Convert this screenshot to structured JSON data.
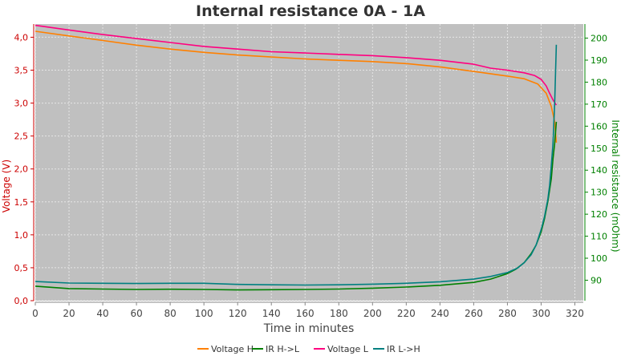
{
  "chart_data": {
    "type": "line",
    "title": "Internal resistance  0A - 1A",
    "xlabel": "Time in minutes",
    "ylabel_left": "Voltage (V)",
    "ylabel_right": "Internal resistance (mOhm)",
    "xlim": [
      0,
      325
    ],
    "ylim_left": [
      0,
      4.2
    ],
    "ylim_right": [
      80.7,
      206.4
    ],
    "x_ticks": [
      0,
      20,
      40,
      60,
      80,
      100,
      120,
      140,
      160,
      180,
      200,
      220,
      240,
      260,
      280,
      300,
      320
    ],
    "y_left_ticks": [
      "0,0",
      "0,5",
      "1,0",
      "1,5",
      "2,0",
      "2,5",
      "3,0",
      "3,5",
      "4,0"
    ],
    "y_left_tick_values": [
      0,
      0.5,
      1.0,
      1.5,
      2.0,
      2.5,
      3.0,
      3.5,
      4.0
    ],
    "y_right_ticks": [
      90,
      100,
      110,
      120,
      130,
      140,
      150,
      160,
      170,
      180,
      190,
      200
    ],
    "grid": true,
    "legend_position": "bottom",
    "colors": {
      "plot_background": "#c0c0c0",
      "grid": "#e6e6e6",
      "left_axis": "#cc0000",
      "right_axis": "#008000"
    },
    "series": [
      {
        "name": "Voltage H",
        "axis": "left",
        "color": "#ff8000",
        "x": [
          0,
          20,
          40,
          60,
          80,
          100,
          120,
          140,
          160,
          180,
          200,
          220,
          240,
          260,
          280,
          290,
          298,
          303,
          306,
          308,
          309
        ],
        "values": [
          4.09,
          4.02,
          3.95,
          3.88,
          3.82,
          3.77,
          3.73,
          3.7,
          3.67,
          3.65,
          3.63,
          3.6,
          3.55,
          3.48,
          3.41,
          3.37,
          3.29,
          3.15,
          2.95,
          2.72,
          2.4
        ]
      },
      {
        "name": "IR H->L",
        "axis": "right",
        "color": "#008000",
        "x": [
          0,
          20,
          40,
          60,
          80,
          100,
          120,
          140,
          160,
          180,
          200,
          220,
          240,
          260,
          270,
          280,
          285,
          290,
          294,
          297,
          300,
          302,
          304,
          306,
          307,
          308,
          309
        ],
        "values": [
          87.3,
          86.2,
          86.0,
          85.8,
          85.9,
          85.8,
          85.6,
          85.7,
          85.8,
          86.0,
          86.4,
          86.9,
          87.7,
          89.0,
          90.5,
          93.0,
          95.0,
          98.0,
          102.0,
          106.0,
          112.0,
          118.0,
          126.0,
          136.0,
          145.0,
          152.0,
          162.0
        ]
      },
      {
        "name": "Voltage L",
        "axis": "left",
        "color": "#ff0080",
        "x": [
          0,
          20,
          40,
          60,
          80,
          100,
          120,
          140,
          160,
          180,
          200,
          220,
          240,
          260,
          270,
          280,
          290,
          296,
          300,
          303,
          305,
          307,
          309
        ],
        "values": [
          4.18,
          4.11,
          4.04,
          3.98,
          3.92,
          3.86,
          3.82,
          3.78,
          3.76,
          3.74,
          3.72,
          3.69,
          3.65,
          3.59,
          3.53,
          3.5,
          3.46,
          3.42,
          3.36,
          3.26,
          3.15,
          3.05,
          2.97
        ]
      },
      {
        "name": "IR L->H",
        "axis": "right",
        "color": "#008080",
        "x": [
          0,
          20,
          40,
          60,
          80,
          100,
          120,
          140,
          160,
          180,
          200,
          220,
          240,
          260,
          270,
          280,
          286,
          290,
          294,
          297,
          300,
          302,
          304,
          305,
          306,
          307,
          308,
          309
        ],
        "values": [
          89.4,
          88.7,
          88.6,
          88.5,
          88.6,
          88.6,
          88.1,
          87.9,
          87.8,
          87.9,
          88.2,
          88.6,
          89.3,
          90.5,
          91.7,
          93.5,
          95.5,
          98.0,
          101.5,
          106.0,
          113.0,
          119.0,
          127.0,
          133.0,
          142.0,
          152.0,
          170.0,
          197.0
        ]
      }
    ]
  }
}
